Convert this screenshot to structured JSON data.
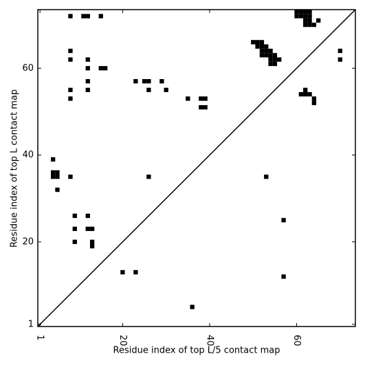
{
  "chart_data": {
    "type": "scatter",
    "marker": "square",
    "color": "#000000",
    "xlabel": "Residue index of top L/5 contact map",
    "ylabel": "Residue index of top L contact map",
    "xlim": [
      0.5,
      73.5
    ],
    "ylim": [
      0.5,
      73.5
    ],
    "xticks": [
      1,
      20,
      40,
      60
    ],
    "yticks": [
      1,
      20,
      40,
      60
    ],
    "diagonal": true,
    "series": [
      {
        "name": null,
        "x": [
          8,
          11,
          12,
          15,
          8,
          8,
          12,
          12,
          15,
          16,
          12,
          12,
          8,
          8,
          23,
          25,
          26,
          29,
          26,
          30,
          35,
          38,
          39,
          38,
          39,
          4,
          4,
          5,
          4,
          5,
          5,
          8,
          26,
          50,
          51,
          52,
          51,
          52,
          53,
          52,
          53,
          54,
          52,
          53,
          54,
          55,
          54,
          55,
          56,
          54,
          55,
          60,
          61,
          62,
          63,
          60,
          61,
          62,
          63,
          62,
          63,
          62,
          63,
          64,
          65,
          70,
          70,
          62,
          61,
          62,
          63,
          64,
          64,
          9,
          12,
          9,
          12,
          13,
          9,
          13,
          13,
          20,
          23,
          36,
          53,
          57,
          57
        ],
        "y": [
          72,
          72,
          72,
          72,
          64,
          62,
          62,
          60,
          60,
          60,
          57,
          55,
          55,
          53,
          57,
          57,
          57,
          57,
          55,
          55,
          53,
          53,
          53,
          51,
          51,
          39,
          36,
          36,
          35,
          35,
          32,
          35,
          35,
          66,
          66,
          66,
          65,
          65,
          65,
          64,
          64,
          64,
          63,
          63,
          63,
          63,
          62,
          62,
          62,
          61,
          61,
          73,
          73,
          73,
          73,
          72,
          72,
          72,
          72,
          71,
          71,
          70,
          70,
          70,
          71,
          64,
          62,
          55,
          54,
          54,
          54,
          53,
          52,
          26,
          26,
          23,
          23,
          23,
          20,
          20,
          19,
          13,
          13,
          5,
          35,
          25,
          12
        ]
      }
    ]
  }
}
